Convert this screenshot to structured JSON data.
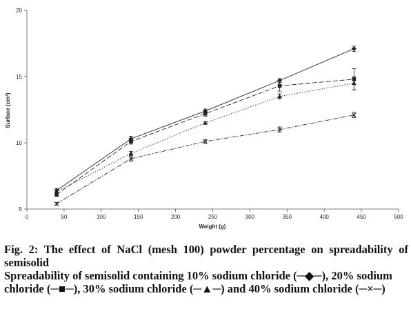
{
  "chart_data": {
    "type": "line",
    "title": "",
    "xlabel": "Weight (g)",
    "ylabel": "Surface (cm²)",
    "xlim": [
      0,
      500
    ],
    "ylim": [
      5,
      20
    ],
    "x_ticks": [
      "0",
      "50",
      "100",
      "150",
      "200",
      "250",
      "300",
      "350",
      "400",
      "450",
      "500"
    ],
    "y_ticks": [
      "5",
      "10",
      "15",
      "20"
    ],
    "grid": false,
    "x": [
      40,
      140,
      240,
      340,
      440
    ],
    "series": [
      {
        "name": "10% sodium chloride",
        "marker": "diamond",
        "dash": "solid",
        "values": [
          6.4,
          10.3,
          12.4,
          14.7,
          17.1
        ],
        "errors": [
          0.15,
          0.2,
          0.15,
          0.15,
          0.2
        ]
      },
      {
        "name": "20% sodium chloride",
        "marker": "square",
        "dash": "longdash",
        "values": [
          6.1,
          10.1,
          12.2,
          14.3,
          14.8
        ],
        "errors": [
          0.15,
          0.2,
          0.2,
          0.4,
          0.8
        ]
      },
      {
        "name": "30% sodium chloride",
        "marker": "triangle",
        "dash": "dotted",
        "values": [
          6.3,
          9.2,
          11.5,
          13.5,
          14.5
        ],
        "errors": [
          0.1,
          0.15,
          0.1,
          0.2,
          0.5
        ]
      },
      {
        "name": "40% sodium chloride",
        "marker": "cross",
        "dash": "dashdot",
        "values": [
          5.4,
          8.8,
          10.1,
          11.0,
          12.1
        ],
        "errors": [
          0.1,
          0.2,
          0.15,
          0.2,
          0.2
        ]
      }
    ]
  },
  "caption": {
    "title": "Fig. 2: The effect of NaCl (mesh 100) powder percentage on spreadability of semisolid",
    "description": "Spreadability of semisolid containing 10% sodium chloride (─◆─), 20% sodium chloride (─■─), 30% sodium chloride (─▲─) and 40% sodium chloride (─×─)"
  }
}
